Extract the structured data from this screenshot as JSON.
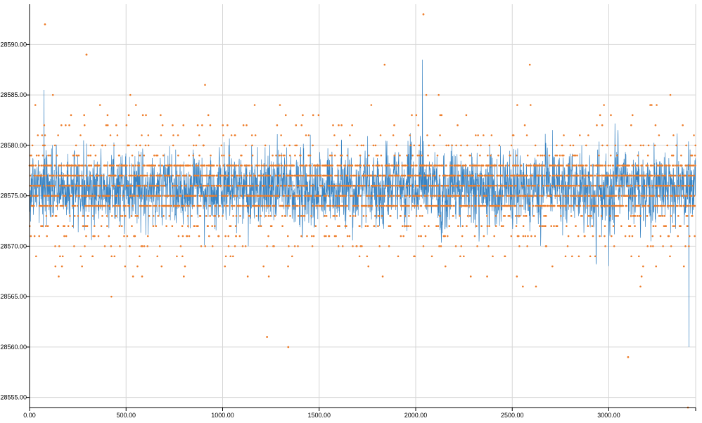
{
  "chart_data": {
    "type": "line",
    "title": "",
    "xlabel": "",
    "ylabel": "",
    "xlim": [
      0,
      3450
    ],
    "ylim": [
      28554,
      28594
    ],
    "x_ticks": [
      0,
      500,
      1000,
      1500,
      2000,
      2500,
      3000
    ],
    "x_tick_labels": [
      "0.00",
      "500.00",
      "1000.00",
      "1500.00",
      "2000.00",
      "2500.00",
      "3000.00"
    ],
    "y_ticks": [
      28555,
      28560,
      28565,
      28570,
      28575,
      28580,
      28585,
      28590
    ],
    "y_tick_labels": [
      "28555.00",
      "28560.00",
      "28565.00",
      "28570.00",
      "28575.00",
      "28580.00",
      "28585.00",
      "28590.00"
    ],
    "grid": true,
    "legend": "none",
    "series": [
      {
        "style": "line",
        "color": "#2f7dc0",
        "n_points": 3450,
        "center": 28575.8,
        "typical_range": [
          28569,
          28582
        ],
        "notable_points": [
          [
            75,
            28585.5
          ],
          [
            2035,
            28588.5
          ],
          [
            3415,
            28560
          ]
        ]
      },
      {
        "style": "dots",
        "color": "#ee7d2a",
        "n_points": 3450,
        "values_integer": true,
        "dense_levels": [
          28574,
          28575,
          28576,
          28577,
          28578
        ],
        "notable_points": [
          [
            80,
            28592
          ],
          [
            295,
            28589
          ],
          [
            1230,
            28561
          ],
          [
            1340,
            28560
          ],
          [
            2040,
            28593
          ],
          [
            3100,
            28559
          ],
          [
            3410,
            28554
          ]
        ]
      }
    ]
  }
}
